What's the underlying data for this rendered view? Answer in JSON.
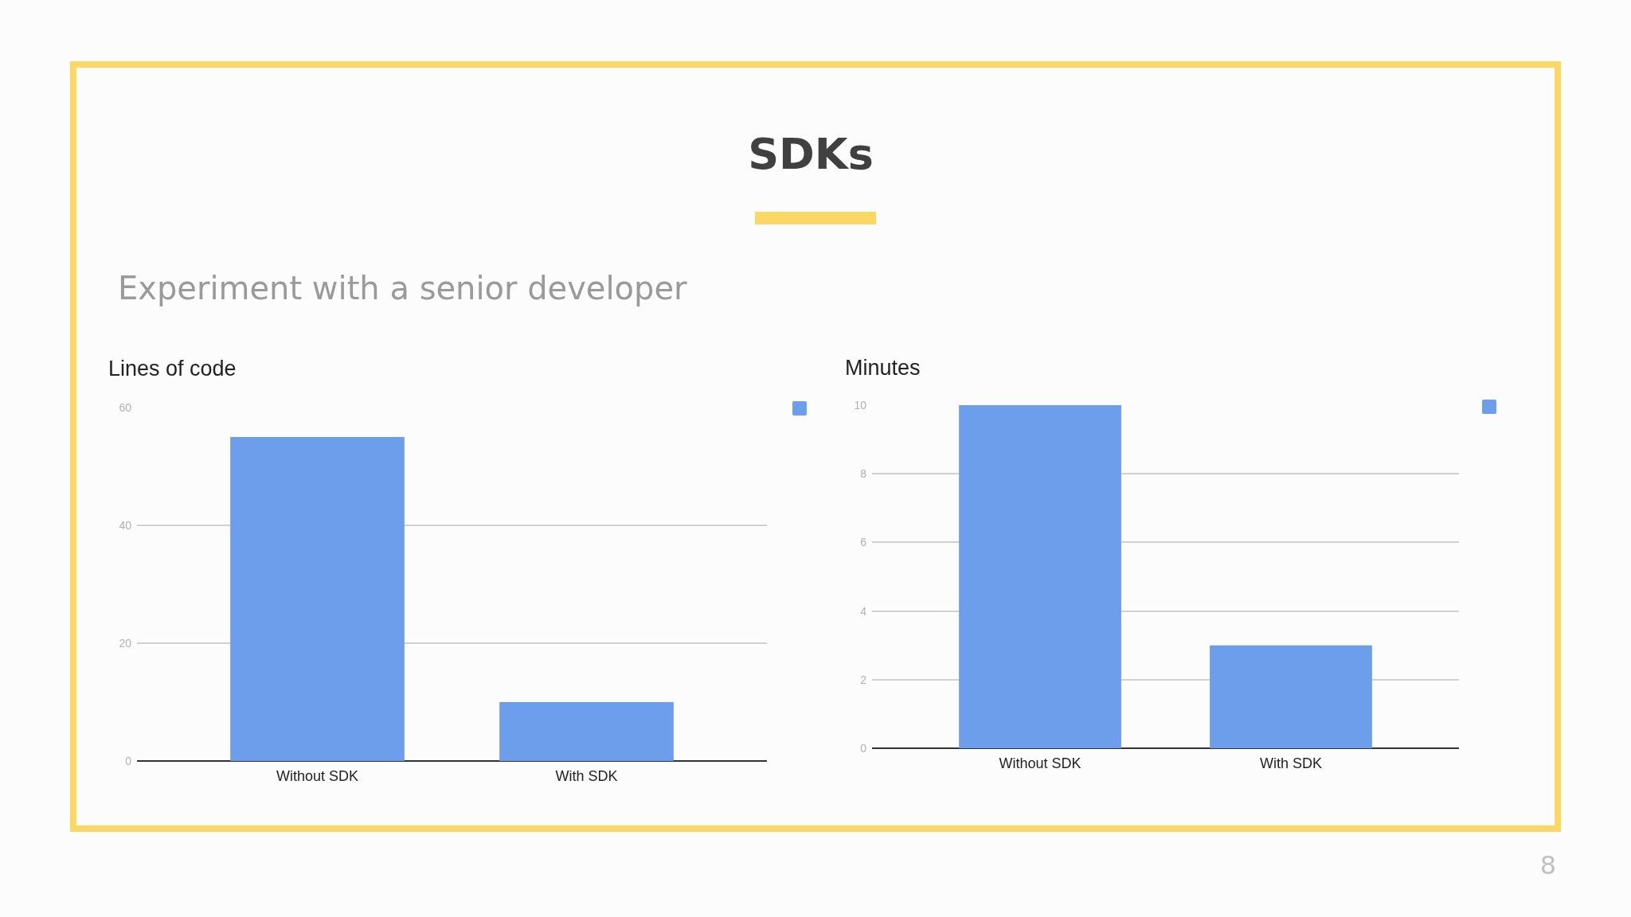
{
  "chart_data": [
    {
      "type": "other",
      "title": "SDKs",
      "subtitle": "Experiment with a senior developer",
      "annotations": [
        "8"
      ]
    },
    {
      "type": "bar",
      "title": "Lines of code",
      "categories": [
        "Without SDK",
        "With SDK"
      ],
      "values": [
        55,
        10
      ],
      "color": "#6d9eeb",
      "ylim": [
        0,
        60
      ],
      "yticks": [
        0,
        20,
        40,
        60
      ],
      "grid": "y"
    },
    {
      "type": "bar",
      "title": "Minutes",
      "categories": [
        "Without SDK",
        "With SDK"
      ],
      "values": [
        10,
        3
      ],
      "color": "#6d9eeb",
      "ylim": [
        0,
        10
      ],
      "yticks": [
        0,
        2,
        4,
        6,
        8,
        10
      ],
      "grid": "y"
    }
  ]
}
